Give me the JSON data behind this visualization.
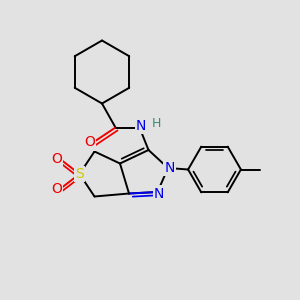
{
  "background_color": "#e2e2e2",
  "atom_colors": {
    "C": "#000000",
    "N": "#0000ee",
    "O": "#ee0000",
    "S": "#cccc00",
    "H": "#3a8a7a"
  },
  "bond_lw": 1.4,
  "figsize": [
    3.0,
    3.0
  ],
  "dpi": 100
}
